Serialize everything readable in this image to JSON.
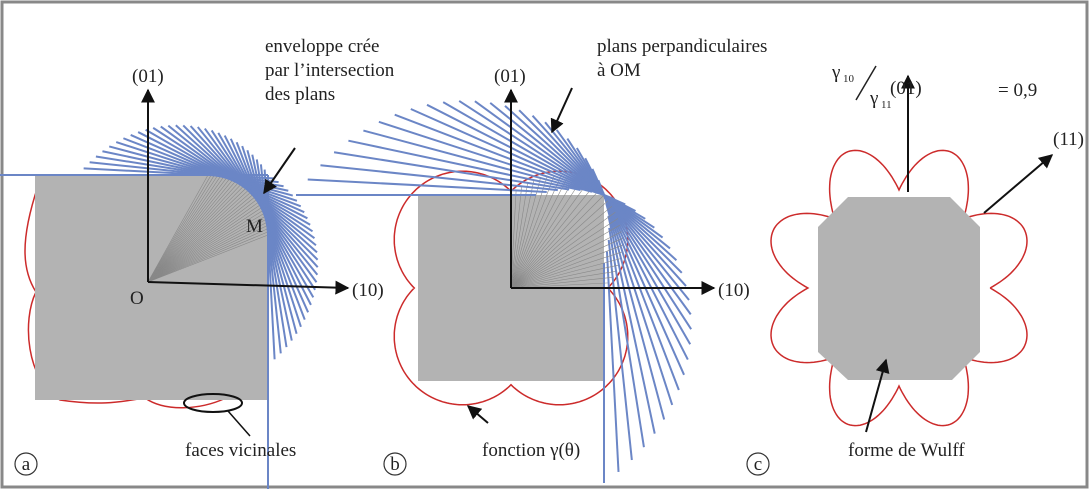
{
  "panel_a": {
    "label": "a",
    "annotation": [
      "enveloppe crée",
      "par l’intersection",
      "des plans"
    ],
    "axis_y": "(01)",
    "axis_x": "(10)",
    "point_m": "M",
    "point_o": "O",
    "note": "faces vicinales"
  },
  "panel_b": {
    "label": "b",
    "annotation": [
      "plans perpandiculaires",
      "à OM"
    ],
    "axis_y": "(01)",
    "axis_x": "(10)",
    "note": "fonction γ(θ)"
  },
  "panel_c": {
    "label": "c",
    "axis_y": "(01)",
    "axis_d": "(11)",
    "ratio": {
      "symbol_num": "γ",
      "sub_num": "10",
      "symbol_den": "γ",
      "sub_den": "11",
      "value": "= 0,9"
    },
    "note": "forme de Wulff"
  }
}
